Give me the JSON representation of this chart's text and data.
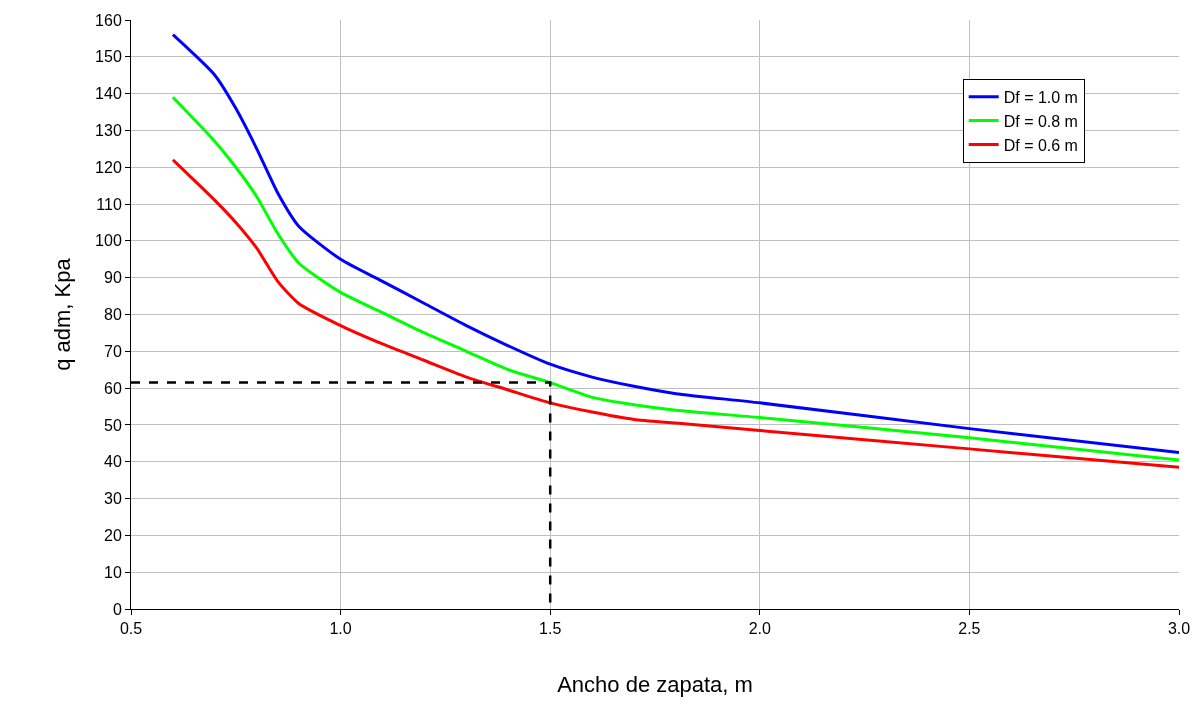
{
  "chart_data": {
    "type": "line",
    "xlabel": "Ancho de zapata, m",
    "ylabel": "q adm, Kpa",
    "xlim": [
      0.5,
      3.0
    ],
    "xticks": [
      0.5,
      {
        "value": 1,
        "label": "1.0"
      },
      1.5,
      {
        "value": 2,
        "label": "2.0"
      },
      2.5,
      {
        "value": 3,
        "label": "3.0"
      }
    ],
    "ylim": [
      0,
      160
    ],
    "yticks": [
      0,
      10,
      20,
      30,
      40,
      50,
      60,
      70,
      80,
      90,
      100,
      110,
      120,
      130,
      140,
      150,
      160
    ],
    "grid": true,
    "legend": "top right",
    "marker": "none",
    "line_style": "solid",
    "series": [
      {
        "name": "Df = 1.0 m",
        "color": "#0000ff",
        "x": [
          0.6,
          0.7,
          0.75,
          0.8,
          0.85,
          0.9,
          1.0,
          1.1,
          1.2,
          1.3,
          1.4,
          1.5,
          1.6,
          1.7,
          1.8,
          2.0,
          2.5,
          3.0
        ],
        "values": [
          156,
          145,
          136,
          125,
          113,
          104,
          95,
          89,
          83,
          77,
          71.5,
          66.5,
          63,
          60.5,
          58.5,
          56,
          49,
          42.5
        ]
      },
      {
        "name": "Df = 0.8 m",
        "color": "#00ff00",
        "x": [
          0.6,
          0.7,
          0.75,
          0.8,
          0.85,
          0.9,
          1.0,
          1.1,
          1.2,
          1.3,
          1.4,
          1.5,
          1.6,
          1.7,
          1.8,
          2.0,
          2.5,
          3.0
        ],
        "values": [
          139,
          127,
          120,
          112,
          102,
          94,
          86,
          80.5,
          75,
          70,
          65,
          61.5,
          57.5,
          55.5,
          54,
          52,
          46.5,
          40.5
        ]
      },
      {
        "name": "Df = 0.6 m",
        "color": "#ff0000",
        "x": [
          0.6,
          0.7,
          0.75,
          0.8,
          0.85,
          0.9,
          1.0,
          1.1,
          1.2,
          1.3,
          1.4,
          1.5,
          1.6,
          1.7,
          1.8,
          2.0,
          2.5,
          3.0
        ],
        "values": [
          122,
          111,
          105,
          98,
          89,
          83,
          77,
          72,
          67.5,
          63,
          59.5,
          56,
          53.5,
          51.5,
          50.5,
          48.5,
          43.5,
          38.5
        ]
      },
      {
        "color": "#000000",
        "line_style": "dashed",
        "x": [
          0.5,
          1.5,
          1.5
        ],
        "values": [
          61.5,
          61.5,
          0
        ]
      }
    ]
  }
}
